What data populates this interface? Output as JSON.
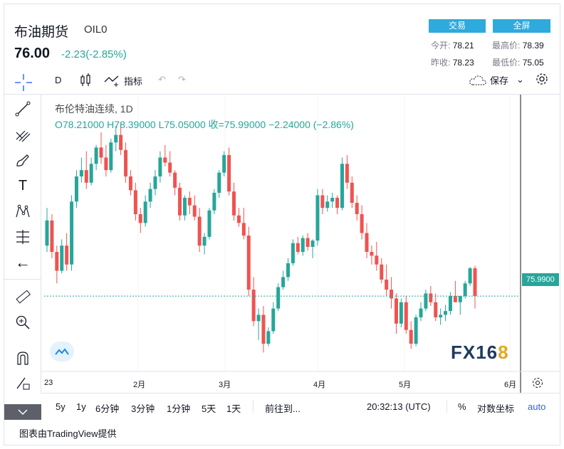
{
  "header": {
    "name": "布油期货",
    "code": "OIL0",
    "price": "76.00",
    "change": "-2.23(-2.85%)",
    "trade_btn": "交易",
    "fullscreen_btn": "全屏",
    "stats": {
      "open_label": "今开:",
      "open": "78.21",
      "high_label": "最高价:",
      "high": "78.39",
      "prev_label": "昨收:",
      "prev": "78.23",
      "low_label": "最低价:",
      "low": "75.05"
    }
  },
  "toolbar": {
    "interval": "D",
    "indicators": "指标",
    "save": "保存"
  },
  "legend": {
    "title": "布伦特油连续, 1D",
    "ohlc": "O78.21000  H78.39000  L75.05000  收=75.99000  −2.24000 (−2.86%)"
  },
  "price_tag": "75.9900",
  "x_labels": [
    "23",
    "2月",
    "3月",
    "4月",
    "5月",
    "6月"
  ],
  "bottom": {
    "ranges": [
      "5y",
      "1y",
      "6分钟",
      "3分钟",
      "1分钟",
      "5天",
      "1天"
    ],
    "goto": "前往到...",
    "time": "20:32:13 (UTC)",
    "percent": "%",
    "log": "对数坐标",
    "auto": "auto"
  },
  "credit": "图表由TradingView提供",
  "watermark": "FX168",
  "colors": {
    "up": "#26a69a",
    "down": "#ef5350",
    "accent": "#2eaadc"
  },
  "chart_data": {
    "type": "candlestick",
    "title": "布伦特油连续, 1D",
    "last_close": 75.99,
    "ohlc": [
      [
        80,
        83,
        79.5,
        82
      ],
      [
        82,
        82.5,
        79,
        79.5
      ],
      [
        79.5,
        80,
        77,
        78
      ],
      [
        78,
        80.5,
        77.8,
        80
      ],
      [
        80,
        81,
        78,
        78.5
      ],
      [
        78.5,
        84,
        78,
        83.5
      ],
      [
        83.5,
        86,
        83,
        85.5
      ],
      [
        85.5,
        87,
        85,
        86
      ],
      [
        86,
        87.5,
        84.5,
        85
      ],
      [
        85,
        87,
        84.8,
        86.5
      ],
      [
        86.5,
        88,
        86,
        87.8
      ],
      [
        87.8,
        89,
        86.5,
        87
      ],
      [
        87,
        88,
        85.5,
        86
      ],
      [
        86,
        88.5,
        85.8,
        88.2
      ],
      [
        88.2,
        89.5,
        87.5,
        88.8
      ],
      [
        88.8,
        89.7,
        87.2,
        87.6
      ],
      [
        87.6,
        88.2,
        85,
        85.5
      ],
      [
        85.5,
        86,
        84,
        84.4
      ],
      [
        84.4,
        85,
        82,
        82.5
      ],
      [
        82.5,
        83,
        81,
        81.8
      ],
      [
        81.8,
        84,
        81.5,
        83.5
      ],
      [
        83.5,
        85,
        83,
        84.5
      ],
      [
        84.5,
        86,
        84,
        85.5
      ],
      [
        85.5,
        87.5,
        85,
        87
      ],
      [
        87,
        88,
        86.3,
        86.6
      ],
      [
        86.6,
        87.5,
        85.5,
        85.8
      ],
      [
        85.8,
        86,
        84,
        84.6
      ],
      [
        84.6,
        85,
        82,
        82.4
      ],
      [
        82.4,
        84,
        82,
        83.8
      ],
      [
        83.8,
        84.3,
        82.5,
        83.2
      ],
      [
        83.2,
        84,
        82,
        82.3
      ],
      [
        82.3,
        83,
        79.5,
        80
      ],
      [
        80,
        81,
        79.3,
        80.7
      ],
      [
        80.7,
        83,
        80.5,
        82.8
      ],
      [
        82.8,
        84.5,
        82.5,
        84.2
      ],
      [
        84.2,
        86,
        83.8,
        85.8
      ],
      [
        85.8,
        87.5,
        85.5,
        87.2
      ],
      [
        87.2,
        87.8,
        84,
        84.3
      ],
      [
        84.3,
        85,
        82,
        82.4
      ],
      [
        82.4,
        83,
        81.5,
        81.8
      ],
      [
        81.8,
        83,
        80.5,
        80.8
      ],
      [
        80.8,
        81.5,
        76,
        76.5
      ],
      [
        76.5,
        77.5,
        73.6,
        74
      ],
      [
        74,
        75,
        72.5,
        74.5
      ],
      [
        74.5,
        75.2,
        71.5,
        72.2
      ],
      [
        72.2,
        73.5,
        72,
        73.2
      ],
      [
        73.2,
        75.5,
        73,
        75
      ],
      [
        75,
        77,
        74.8,
        76.7
      ],
      [
        76.7,
        78,
        76.5,
        77.5
      ],
      [
        77.5,
        79,
        77.2,
        78.6
      ],
      [
        78.6,
        80.5,
        78.4,
        80.2
      ],
      [
        80.2,
        80.7,
        79.3,
        79.5
      ],
      [
        79.5,
        80.8,
        79.2,
        80.6
      ],
      [
        80.6,
        81,
        79.6,
        79.9
      ],
      [
        79.9,
        80.5,
        79,
        80.4
      ],
      [
        80.4,
        84.5,
        80,
        84
      ],
      [
        84,
        84.5,
        82.5,
        83
      ],
      [
        83,
        84,
        82.7,
        83.5
      ],
      [
        83.5,
        84.2,
        83,
        83.8
      ],
      [
        83.8,
        84,
        82.5,
        83
      ],
      [
        83,
        87,
        82.8,
        86.5
      ],
      [
        86.5,
        87.2,
        84.5,
        85
      ],
      [
        85,
        85.5,
        83,
        83.4
      ],
      [
        83.4,
        84,
        82,
        82.5
      ],
      [
        82.5,
        83.2,
        80.5,
        81
      ],
      [
        81,
        81.8,
        79,
        79.5
      ],
      [
        79.5,
        80,
        78.5,
        79.2
      ],
      [
        79.2,
        80.3,
        78,
        78.5
      ],
      [
        78.5,
        79,
        77,
        77.3
      ],
      [
        77.3,
        78.5,
        76,
        76.5
      ],
      [
        76.5,
        77.5,
        75,
        75.8
      ],
      [
        75.8,
        76.2,
        73,
        73.8
      ],
      [
        73.8,
        75.8,
        73.5,
        75.5
      ],
      [
        75.5,
        76,
        73,
        73.3
      ],
      [
        73.3,
        74,
        71.8,
        72.2
      ],
      [
        72.2,
        74.5,
        72,
        74.3
      ],
      [
        74.3,
        75.5,
        74,
        75
      ],
      [
        75,
        76.5,
        74.8,
        76.2
      ],
      [
        76.2,
        76.8,
        75.2,
        75.5
      ],
      [
        75.5,
        76.2,
        74,
        74.3
      ],
      [
        74.3,
        75,
        73.7,
        74.5
      ],
      [
        74.5,
        75.3,
        74,
        74.8
      ],
      [
        74.8,
        76.3,
        74.5,
        76
      ],
      [
        76,
        77.2,
        75.5,
        75.5
      ],
      [
        75.5,
        76,
        74.5,
        76
      ],
      [
        76,
        77.2,
        75.8,
        77
      ],
      [
        77,
        78.3,
        76.8,
        78.2
      ],
      [
        78.2,
        78.4,
        75,
        76
      ]
    ]
  }
}
